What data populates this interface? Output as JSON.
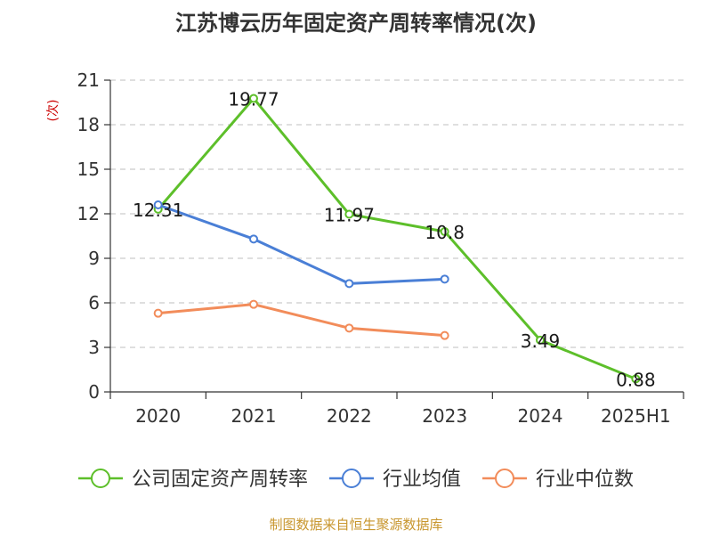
{
  "chart_data": {
    "type": "line",
    "title": "江苏博云历年固定资产周转率情况(次)",
    "ylabel": "(次)",
    "xlabel": "",
    "categories": [
      "2020",
      "2021",
      "2022",
      "2023",
      "2024",
      "2025H1"
    ],
    "ylim": [
      0,
      21
    ],
    "yticks": [
      0,
      3,
      6,
      9,
      12,
      15,
      18,
      21
    ],
    "grid": true,
    "legend_position": "bottom",
    "series": [
      {
        "name": "公司固定资产周转率",
        "color": "#5dbf2a",
        "values": [
          12.31,
          19.77,
          11.97,
          10.8,
          3.49,
          0.88
        ],
        "labels": [
          "12.31",
          "19.77",
          "11.97",
          "10.8",
          "3.49",
          "0.88"
        ]
      },
      {
        "name": "行业均值",
        "color": "#4a7fd6",
        "values": [
          12.6,
          10.3,
          7.3,
          7.6,
          null,
          null
        ],
        "labels": null
      },
      {
        "name": "行业中位数",
        "color": "#f28c5a",
        "values": [
          5.3,
          5.9,
          4.3,
          3.8,
          null,
          null
        ],
        "labels": null
      }
    ],
    "source": "制图数据来自恒生聚源数据库"
  }
}
